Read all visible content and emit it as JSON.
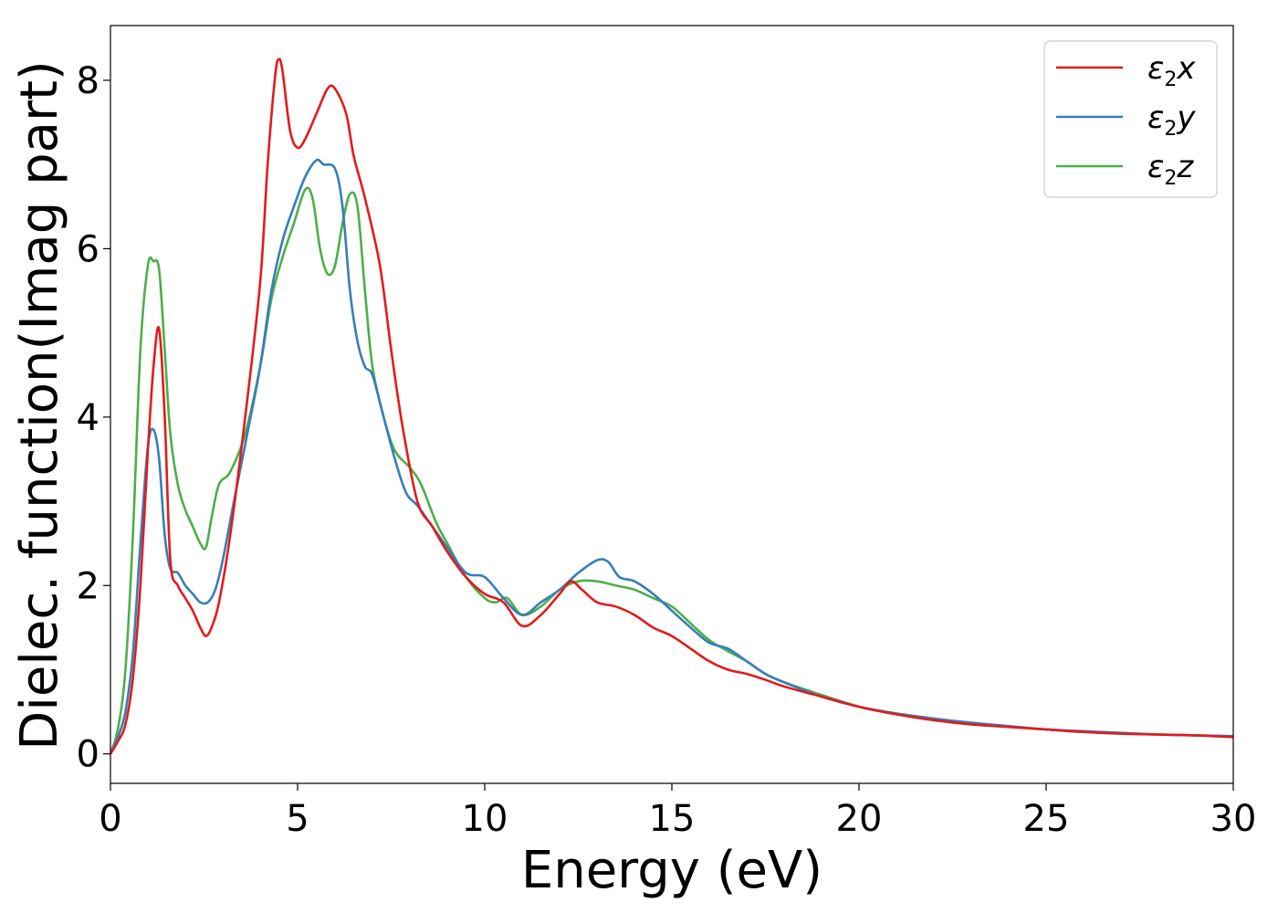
{
  "chart_data": {
    "type": "line",
    "xlabel": "Energy (eV)",
    "ylabel": "Dielec. function(Imag part)",
    "xlim": [
      0,
      30
    ],
    "ylim": [
      -0.35,
      8.65
    ],
    "xticks": [
      0,
      5,
      10,
      15,
      20,
      25,
      30
    ],
    "xtick_labels": [
      "0",
      "5",
      "10",
      "15",
      "20",
      "25",
      "30"
    ],
    "yticks": [
      0,
      2,
      4,
      6,
      8
    ],
    "ytick_labels": [
      "0",
      "2",
      "4",
      "6",
      "8"
    ],
    "grid": false,
    "legend_position": "top-right",
    "series": [
      {
        "name": "ε2x",
        "name_base": "ε",
        "name_sub": "2",
        "name_var": "x",
        "color": "#e41a1c",
        "x": [
          0,
          0.2,
          0.4,
          0.6,
          0.8,
          1.0,
          1.15,
          1.3,
          1.45,
          1.6,
          1.8,
          2.0,
          2.2,
          2.4,
          2.55,
          2.7,
          2.9,
          3.2,
          3.6,
          4.0,
          4.2,
          4.4,
          4.5,
          4.6,
          4.8,
          5.0,
          5.2,
          5.5,
          5.8,
          6.0,
          6.3,
          6.5,
          6.8,
          7.2,
          7.5,
          7.8,
          8.2,
          8.6,
          9.0,
          9.5,
          10.0,
          10.5,
          11.0,
          11.5,
          12.0,
          12.3,
          12.6,
          13.0,
          13.5,
          14.0,
          14.5,
          15.0,
          15.5,
          16.0,
          16.5,
          17.0,
          17.5,
          18.0,
          19.0,
          20.0,
          21.0,
          22.0,
          23.0,
          24.0,
          25.0,
          26.0,
          27.0,
          28.0,
          29.0,
          30.0
        ],
        "y": [
          0.0,
          0.15,
          0.35,
          0.9,
          2.0,
          3.6,
          4.6,
          5.05,
          4.0,
          2.3,
          2.0,
          1.85,
          1.7,
          1.5,
          1.4,
          1.5,
          1.8,
          2.6,
          4.0,
          5.6,
          7.0,
          8.05,
          8.25,
          8.1,
          7.4,
          7.2,
          7.3,
          7.6,
          7.9,
          7.9,
          7.6,
          7.1,
          6.6,
          5.8,
          4.8,
          3.9,
          3.0,
          2.7,
          2.4,
          2.1,
          1.9,
          1.8,
          1.52,
          1.65,
          1.9,
          2.05,
          1.95,
          1.8,
          1.75,
          1.65,
          1.5,
          1.4,
          1.25,
          1.1,
          1.0,
          0.95,
          0.88,
          0.8,
          0.68,
          0.56,
          0.47,
          0.4,
          0.35,
          0.32,
          0.29,
          0.26,
          0.24,
          0.23,
          0.22,
          0.2
        ]
      },
      {
        "name": "ε2y",
        "name_base": "ε",
        "name_sub": "2",
        "name_var": "y",
        "color": "#377eb8",
        "x": [
          0,
          0.2,
          0.4,
          0.6,
          0.8,
          1.0,
          1.15,
          1.3,
          1.45,
          1.6,
          1.8,
          2.0,
          2.2,
          2.4,
          2.6,
          2.8,
          3.0,
          3.3,
          3.7,
          4.0,
          4.3,
          4.6,
          4.9,
          5.2,
          5.5,
          5.7,
          6.0,
          6.2,
          6.4,
          6.6,
          6.8,
          7.0,
          7.3,
          7.6,
          7.9,
          8.2,
          8.6,
          9.0,
          9.5,
          10.0,
          10.5,
          11.0,
          11.5,
          12.0,
          12.5,
          13.0,
          13.3,
          13.6,
          14.0,
          14.5,
          15.0,
          15.5,
          16.0,
          16.5,
          17.0,
          17.5,
          18.0,
          19.0,
          20.0,
          21.0,
          22.0,
          23.0,
          24.0,
          25.0,
          26.0,
          27.0,
          28.0,
          29.0,
          30.0
        ],
        "y": [
          0.0,
          0.2,
          0.5,
          1.2,
          2.5,
          3.65,
          3.85,
          3.5,
          2.6,
          2.2,
          2.15,
          2.0,
          1.9,
          1.8,
          1.8,
          1.95,
          2.3,
          3.0,
          3.9,
          4.6,
          5.5,
          6.1,
          6.5,
          6.85,
          7.05,
          7.0,
          6.95,
          6.5,
          5.5,
          4.9,
          4.6,
          4.5,
          4.0,
          3.5,
          3.1,
          2.95,
          2.7,
          2.45,
          2.15,
          2.1,
          1.85,
          1.65,
          1.8,
          1.95,
          2.15,
          2.3,
          2.28,
          2.1,
          2.05,
          1.9,
          1.7,
          1.5,
          1.32,
          1.25,
          1.1,
          0.95,
          0.85,
          0.68,
          0.56,
          0.48,
          0.42,
          0.37,
          0.33,
          0.29,
          0.27,
          0.25,
          0.23,
          0.22,
          0.21
        ]
      },
      {
        "name": "ε2z",
        "name_base": "ε",
        "name_sub": "2",
        "name_var": "z",
        "color": "#4daf4a",
        "x": [
          0,
          0.2,
          0.4,
          0.6,
          0.8,
          1.0,
          1.15,
          1.3,
          1.45,
          1.6,
          1.8,
          2.0,
          2.2,
          2.4,
          2.55,
          2.7,
          2.9,
          3.2,
          3.6,
          4.0,
          4.3,
          4.6,
          4.9,
          5.2,
          5.4,
          5.6,
          5.8,
          6.0,
          6.2,
          6.4,
          6.6,
          6.8,
          7.0,
          7.3,
          7.6,
          8.0,
          8.3,
          8.7,
          9.0,
          9.5,
          10.0,
          10.3,
          10.6,
          11.0,
          11.5,
          12.0,
          12.5,
          13.0,
          13.5,
          14.0,
          14.5,
          15.0,
          15.5,
          16.0,
          16.5,
          17.0,
          17.5,
          18.0,
          19.0,
          20.0,
          21.0,
          22.0,
          23.0,
          24.0,
          25.0,
          26.0,
          27.0,
          28.0,
          29.0,
          30.0
        ],
        "y": [
          0.0,
          0.3,
          1.0,
          2.6,
          4.8,
          5.8,
          5.85,
          5.75,
          4.8,
          3.8,
          3.2,
          2.9,
          2.7,
          2.5,
          2.45,
          2.8,
          3.2,
          3.35,
          3.8,
          4.6,
          5.4,
          5.9,
          6.3,
          6.7,
          6.6,
          6.0,
          5.7,
          5.8,
          6.3,
          6.65,
          6.5,
          5.5,
          4.6,
          4.0,
          3.6,
          3.4,
          3.2,
          2.75,
          2.5,
          2.1,
          1.85,
          1.8,
          1.85,
          1.65,
          1.75,
          1.95,
          2.05,
          2.05,
          2.0,
          1.95,
          1.85,
          1.75,
          1.55,
          1.35,
          1.22,
          1.1,
          0.95,
          0.85,
          0.7,
          0.56,
          0.47,
          0.4,
          0.35,
          0.32,
          0.29,
          0.26,
          0.24,
          0.23,
          0.22,
          0.21
        ]
      }
    ]
  }
}
